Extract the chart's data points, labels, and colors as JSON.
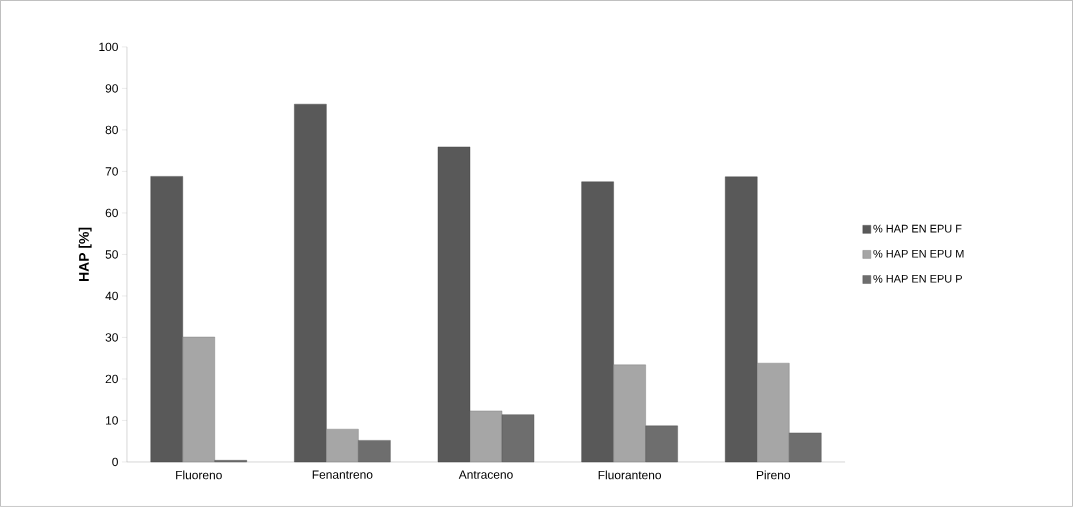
{
  "chart_data": {
    "type": "bar",
    "ylabel": "HAP  [%]",
    "categories": [
      "Fluoreno",
      "Fenantreno",
      "Antraceno",
      "Fluoranteno",
      "Pireno"
    ],
    "series": [
      {
        "name": "% HAP EN EPU F",
        "color": "#595959",
        "values": [
          68.8,
          86.2,
          75.9,
          67.5,
          68.7
        ]
      },
      {
        "name": "% HAP EN EPU M",
        "color": "#a6a6a6",
        "values": [
          30.1,
          7.9,
          12.3,
          23.4,
          23.8
        ]
      },
      {
        "name": "% HAP EN EPU P",
        "color": "#6e6e6e",
        "values": [
          0.4,
          5.2,
          11.4,
          8.7,
          7.0
        ]
      }
    ],
    "ylim": [
      0,
      100
    ],
    "yticks": [
      0,
      10,
      20,
      30,
      40,
      50,
      60,
      70,
      80,
      90,
      100
    ],
    "legend": "right"
  }
}
